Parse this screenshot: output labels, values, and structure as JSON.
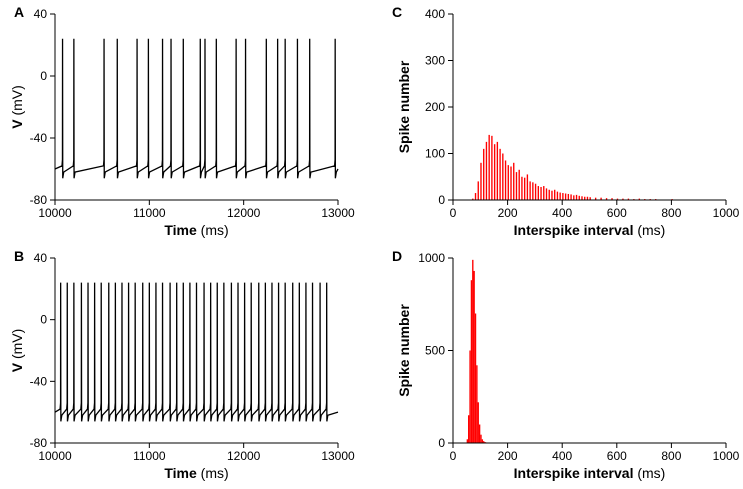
{
  "chart_data": [
    {
      "panel": "A",
      "type": "line",
      "title": "",
      "xlabel": "Time",
      "xlabel_unit": "(ms)",
      "ylabel": "V",
      "ylabel_unit": "(mV)",
      "xlim": [
        10000,
        13000
      ],
      "ylim": [
        -80,
        40
      ],
      "xticks": [
        10000,
        11000,
        12000,
        13000
      ],
      "yticks": [
        -80,
        -40,
        0,
        40
      ],
      "xtick_labels": [
        "10000",
        "11000",
        "12000",
        "13000"
      ],
      "ytick_labels": [
        "-80",
        "-40",
        "0",
        "40"
      ],
      "color": "#000000",
      "spike_peak_mv": 24,
      "spike_trough_mv": -66,
      "baseline_mv": -60,
      "spike_times_ms": [
        10080,
        10200,
        10520,
        10660,
        10870,
        10990,
        11140,
        11230,
        11360,
        11540,
        11590,
        11710,
        11920,
        12020,
        12240,
        12360,
        12440,
        12570,
        12700,
        12970
      ]
    },
    {
      "panel": "B",
      "type": "line",
      "title": "",
      "xlabel": "Time",
      "xlabel_unit": "(ms)",
      "ylabel": "V",
      "ylabel_unit": "(mV)",
      "xlim": [
        10000,
        13000
      ],
      "ylim": [
        -80,
        40
      ],
      "xticks": [
        10000,
        11000,
        12000,
        13000
      ],
      "yticks": [
        -80,
        -40,
        0,
        40
      ],
      "xtick_labels": [
        "10000",
        "11000",
        "12000",
        "13000"
      ],
      "ytick_labels": [
        "-80",
        "-40",
        "0",
        "40"
      ],
      "color": "#000000",
      "spike_peak_mv": 24,
      "spike_trough_mv": -66,
      "baseline_mv": -60,
      "spike_times_ms": [
        10060,
        10130,
        10200,
        10280,
        10350,
        10420,
        10490,
        10570,
        10640,
        10710,
        10780,
        10850,
        10930,
        11000,
        11070,
        11140,
        11220,
        11290,
        11360,
        11430,
        11500,
        11580,
        11650,
        11720,
        11790,
        11870,
        11940,
        12010,
        12080,
        12160,
        12230,
        12300,
        12370,
        12440,
        12520,
        12590,
        12660,
        12730,
        12810,
        12880
      ]
    },
    {
      "panel": "C",
      "type": "bar",
      "title": "",
      "xlabel": "Interspike interval",
      "xlabel_unit": "(ms)",
      "ylabel": "Spike number",
      "xlim": [
        0,
        1000
      ],
      "ylim": [
        0,
        400
      ],
      "xticks": [
        0,
        200,
        400,
        600,
        800,
        1000
      ],
      "yticks": [
        0,
        100,
        200,
        300,
        400
      ],
      "xtick_labels": [
        "0",
        "200",
        "400",
        "600",
        "800",
        "1000"
      ],
      "ytick_labels": [
        "0",
        "100",
        "200",
        "300",
        "400"
      ],
      "color": "#ff0000",
      "bin_width": 5,
      "bin_starts": [
        70,
        80,
        90,
        100,
        110,
        120,
        130,
        140,
        150,
        160,
        170,
        180,
        190,
        200,
        210,
        220,
        230,
        240,
        250,
        260,
        270,
        280,
        290,
        300,
        310,
        320,
        330,
        340,
        350,
        360,
        370,
        380,
        390,
        400,
        410,
        420,
        430,
        440,
        450,
        460,
        470,
        480,
        490,
        500,
        520,
        540,
        560,
        580,
        600,
        620,
        640,
        660,
        680,
        700,
        720,
        740,
        760,
        780,
        800,
        820,
        840,
        860,
        880
      ],
      "values": [
        3,
        15,
        40,
        80,
        110,
        125,
        140,
        138,
        120,
        125,
        110,
        100,
        85,
        75,
        72,
        80,
        60,
        65,
        50,
        48,
        55,
        40,
        38,
        35,
        30,
        28,
        30,
        25,
        22,
        20,
        22,
        18,
        16,
        15,
        14,
        13,
        12,
        10,
        11,
        9,
        8,
        7,
        7,
        6,
        5,
        5,
        4,
        4,
        3,
        3,
        3,
        2,
        3,
        2,
        2,
        2,
        1,
        1,
        2,
        1,
        1,
        1,
        1
      ]
    },
    {
      "panel": "D",
      "type": "bar",
      "title": "",
      "xlabel": "Interspike interval",
      "xlabel_unit": "(ms)",
      "ylabel": "Spike number",
      "xlim": [
        0,
        1000
      ],
      "ylim": [
        0,
        1000
      ],
      "xticks": [
        0,
        200,
        400,
        600,
        800,
        1000
      ],
      "yticks": [
        0,
        500,
        1000
      ],
      "xtick_labels": [
        "0",
        "200",
        "400",
        "600",
        "800",
        "1000"
      ],
      "ytick_labels": [
        "0",
        "500",
        "1000"
      ],
      "color": "#ff0000",
      "bin_width": 5,
      "bin_starts": [
        50,
        55,
        60,
        65,
        70,
        75,
        80,
        85,
        90,
        95,
        100,
        105,
        110,
        115,
        120
      ],
      "values": [
        20,
        150,
        500,
        880,
        990,
        930,
        700,
        420,
        220,
        100,
        45,
        20,
        10,
        5,
        3
      ]
    }
  ]
}
